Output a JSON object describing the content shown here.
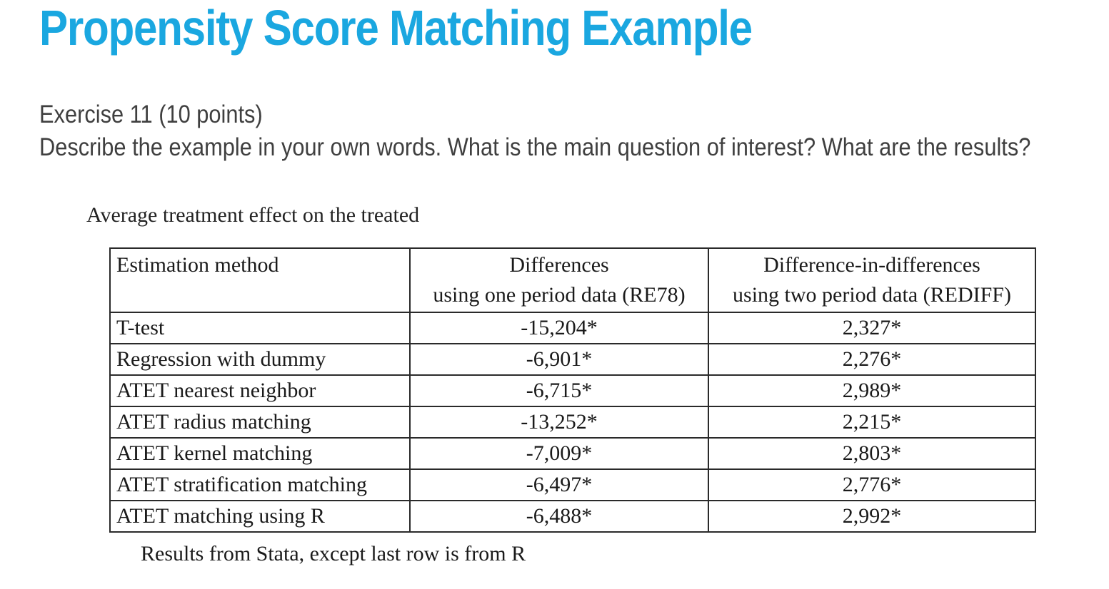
{
  "title": "Propensity Score Matching Example",
  "exercise": {
    "heading": "Exercise 11 (10 points)",
    "prompt": "Describe the example in your own words. What is the main question of interest? What are the results?"
  },
  "table": {
    "caption": "Average treatment effect on the treated",
    "headers": {
      "method": "Estimation method",
      "differences": [
        "Differences",
        "using one period data (RE78)"
      ],
      "did": [
        "Difference-in-differences",
        "using two period data (REDIFF)"
      ]
    },
    "rows": [
      {
        "method": "T-test",
        "differences": "-15,204*",
        "did": "2,327*"
      },
      {
        "method": "Regression with dummy",
        "differences": "-6,901*",
        "did": "2,276*"
      },
      {
        "method": "ATET nearest neighbor",
        "differences": "-6,715*",
        "did": "2,989*"
      },
      {
        "method": "ATET radius matching",
        "differences": "-13,252*",
        "did": "2,215*"
      },
      {
        "method": "ATET kernel matching",
        "differences": "-7,009*",
        "did": "2,803*"
      },
      {
        "method": "ATET stratification matching",
        "differences": "-6,497*",
        "did": "2,776*"
      },
      {
        "method": "ATET matching using R",
        "differences": "-6,488*",
        "did": "2,992*"
      }
    ],
    "note": "Results from Stata, except last row is from R"
  },
  "colors": {
    "title": "#1aa7e0",
    "body_text": "#3f3f3f"
  }
}
